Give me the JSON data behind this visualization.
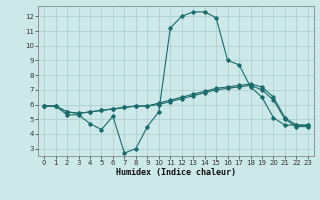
{
  "title": "",
  "xlabel": "Humidex (Indice chaleur)",
  "ylabel": "",
  "background_color": "#cce8e8",
  "grid_color": "#aacccc",
  "line_color": "#1a6b6b",
  "xlim": [
    -0.5,
    23.5
  ],
  "ylim": [
    2.5,
    12.7
  ],
  "xticks": [
    0,
    1,
    2,
    3,
    4,
    5,
    6,
    7,
    8,
    9,
    10,
    11,
    12,
    13,
    14,
    15,
    16,
    17,
    18,
    19,
    20,
    21,
    22,
    23
  ],
  "yticks": [
    3,
    4,
    5,
    6,
    7,
    8,
    9,
    10,
    11,
    12
  ],
  "line1_x": [
    0,
    1,
    2,
    3,
    4,
    5,
    6,
    7,
    8,
    9,
    10,
    11,
    12,
    13,
    14,
    15,
    16,
    17,
    18,
    19,
    20,
    21,
    22,
    23
  ],
  "line1_y": [
    5.9,
    5.9,
    5.3,
    5.3,
    4.7,
    4.3,
    5.2,
    2.7,
    3.0,
    4.5,
    5.5,
    11.2,
    12.0,
    12.3,
    12.3,
    11.9,
    9.0,
    8.7,
    7.2,
    6.5,
    5.1,
    4.6,
    4.6,
    4.6
  ],
  "line2_x": [
    0,
    1,
    2,
    3,
    4,
    5,
    6,
    7,
    8,
    9,
    10,
    11,
    12,
    13,
    14,
    15,
    16,
    17,
    18,
    19,
    20,
    21,
    22,
    23
  ],
  "line2_y": [
    5.9,
    5.9,
    5.5,
    5.4,
    5.5,
    5.6,
    5.7,
    5.8,
    5.9,
    5.9,
    6.1,
    6.3,
    6.5,
    6.7,
    6.9,
    7.1,
    7.2,
    7.3,
    7.4,
    7.2,
    6.5,
    5.1,
    4.6,
    4.6
  ],
  "line3_x": [
    0,
    1,
    2,
    3,
    4,
    5,
    6,
    7,
    8,
    9,
    10,
    11,
    12,
    13,
    14,
    15,
    16,
    17,
    18,
    19,
    20,
    21,
    22,
    23
  ],
  "line3_y": [
    5.9,
    5.9,
    5.5,
    5.4,
    5.5,
    5.6,
    5.7,
    5.8,
    5.9,
    5.9,
    6.0,
    6.2,
    6.4,
    6.6,
    6.8,
    7.0,
    7.1,
    7.2,
    7.3,
    7.0,
    6.3,
    5.0,
    4.5,
    4.5
  ],
  "tick_fontsize": 5.0,
  "xlabel_fontsize": 6.0
}
